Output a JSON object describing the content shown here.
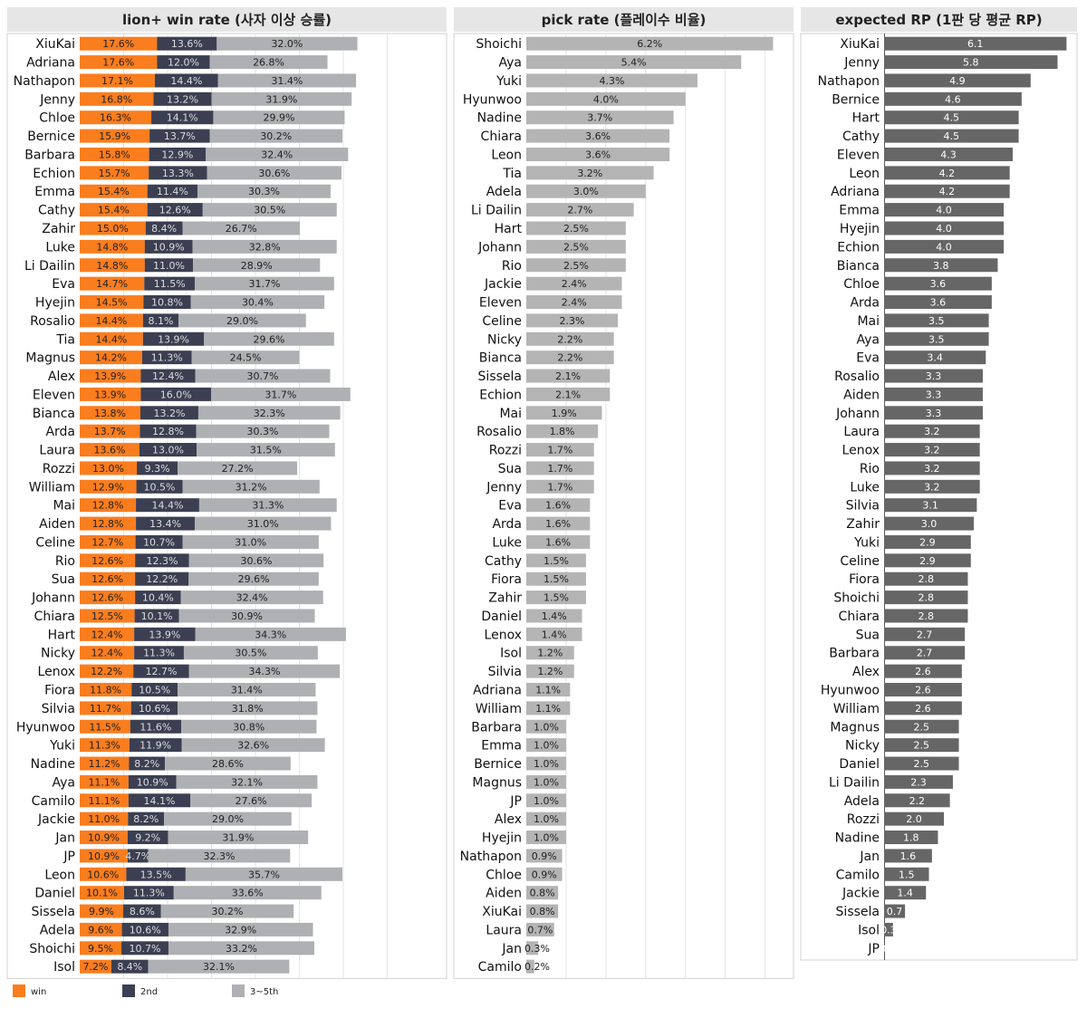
{
  "colors": {
    "win": "#fa7d1e",
    "second": "#3b3f51",
    "third_fifth": "#aeb0b3",
    "pick": "#b4b4b4",
    "rp": "#666666",
    "header_bg": "#e6e6e6",
    "row_bg": "#ffffff"
  },
  "legend": [
    {
      "key": "win",
      "label": "win"
    },
    {
      "key": "second",
      "label": "2nd"
    },
    {
      "key": "third_fifth",
      "label": "3~5th"
    }
  ],
  "chart_data": [
    {
      "type": "bar",
      "stacked": true,
      "orientation": "horizontal",
      "title": "lion+ win rate (사자 이상 승률)",
      "unit": "%",
      "xlim": [
        0,
        80
      ],
      "grid": true,
      "categories": [
        "XiuKai",
        "Adriana",
        "Nathapon",
        "Jenny",
        "Chloe",
        "Bernice",
        "Barbara",
        "Echion",
        "Emma",
        "Cathy",
        "Zahir",
        "Luke",
        "Li Dailin",
        "Eva",
        "Hyejin",
        "Rosalio",
        "Tia",
        "Magnus",
        "Alex",
        "Eleven",
        "Bianca",
        "Arda",
        "Laura",
        "Rozzi",
        "William",
        "Mai",
        "Aiden",
        "Celine",
        "Rio",
        "Sua",
        "Johann",
        "Chiara",
        "Hart",
        "Nicky",
        "Lenox",
        "Fiora",
        "Silvia",
        "Hyunwoo",
        "Yuki",
        "Nadine",
        "Aya",
        "Camilo",
        "Jackie",
        "Jan",
        "JP",
        "Leon",
        "Daniel",
        "Sissela",
        "Adela",
        "Shoichi",
        "Isol"
      ],
      "series": [
        {
          "name": "win",
          "color_key": "win",
          "label_color": "#222222",
          "values": [
            17.6,
            17.6,
            17.1,
            16.8,
            16.3,
            15.9,
            15.8,
            15.7,
            15.4,
            15.4,
            15.0,
            14.8,
            14.8,
            14.7,
            14.5,
            14.4,
            14.4,
            14.2,
            13.9,
            13.9,
            13.8,
            13.7,
            13.6,
            13.0,
            12.9,
            12.8,
            12.8,
            12.7,
            12.6,
            12.6,
            12.6,
            12.5,
            12.4,
            12.4,
            12.2,
            11.8,
            11.7,
            11.5,
            11.3,
            11.2,
            11.1,
            11.1,
            11.0,
            10.9,
            10.9,
            10.6,
            10.1,
            9.9,
            9.6,
            9.5,
            7.2
          ]
        },
        {
          "name": "2nd",
          "color_key": "second",
          "label_color": "#dddddd",
          "values": [
            13.6,
            12.0,
            14.4,
            13.2,
            14.1,
            13.7,
            12.9,
            13.3,
            11.4,
            12.6,
            8.4,
            10.9,
            11.0,
            11.5,
            10.8,
            8.1,
            13.9,
            11.3,
            12.4,
            16.0,
            13.2,
            12.8,
            13.0,
            9.3,
            10.5,
            14.4,
            13.4,
            10.7,
            12.3,
            12.2,
            10.4,
            10.1,
            13.9,
            11.3,
            12.7,
            10.5,
            10.6,
            11.6,
            11.9,
            8.2,
            10.9,
            14.1,
            8.2,
            9.2,
            4.7,
            13.5,
            11.3,
            8.6,
            10.6,
            10.7,
            8.4
          ]
        },
        {
          "name": "3~5th",
          "color_key": "third_fifth",
          "label_color": "#222222",
          "values": [
            32.0,
            26.8,
            31.4,
            31.9,
            29.9,
            30.2,
            32.4,
            30.6,
            30.3,
            30.5,
            26.7,
            32.8,
            28.9,
            31.7,
            30.4,
            29.0,
            29.6,
            24.5,
            30.7,
            31.7,
            32.3,
            30.3,
            31.5,
            27.2,
            31.2,
            31.3,
            31.0,
            31.0,
            30.6,
            29.6,
            32.4,
            30.9,
            34.3,
            30.5,
            34.3,
            31.4,
            31.8,
            30.8,
            32.6,
            28.6,
            32.1,
            27.6,
            29.0,
            31.9,
            32.3,
            35.7,
            33.6,
            30.2,
            32.9,
            33.2,
            32.1
          ]
        }
      ]
    },
    {
      "type": "bar",
      "orientation": "horizontal",
      "title": "pick rate (플레이수 비율)",
      "unit": "%",
      "xlim": [
        0,
        6.6
      ],
      "grid": true,
      "categories": [
        "Shoichi",
        "Aya",
        "Yuki",
        "Hyunwoo",
        "Nadine",
        "Chiara",
        "Leon",
        "Tia",
        "Adela",
        "Li Dailin",
        "Hart",
        "Johann",
        "Rio",
        "Jackie",
        "Eleven",
        "Celine",
        "Nicky",
        "Bianca",
        "Sissela",
        "Echion",
        "Mai",
        "Rosalio",
        "Rozzi",
        "Sua",
        "Jenny",
        "Eva",
        "Arda",
        "Luke",
        "Cathy",
        "Fiora",
        "Zahir",
        "Daniel",
        "Lenox",
        "Isol",
        "Silvia",
        "Adriana",
        "William",
        "Barbara",
        "Emma",
        "Bernice",
        "Magnus",
        "JP",
        "Alex",
        "Hyejin",
        "Nathapon",
        "Chloe",
        "Aiden",
        "XiuKai",
        "Laura",
        "Jan",
        "Camilo"
      ],
      "values": [
        6.2,
        5.4,
        4.3,
        4.0,
        3.7,
        3.6,
        3.6,
        3.2,
        3.0,
        2.7,
        2.5,
        2.5,
        2.5,
        2.4,
        2.4,
        2.3,
        2.2,
        2.2,
        2.1,
        2.1,
        1.9,
        1.8,
        1.7,
        1.7,
        1.7,
        1.6,
        1.6,
        1.6,
        1.5,
        1.5,
        1.5,
        1.4,
        1.4,
        1.2,
        1.2,
        1.1,
        1.1,
        1.0,
        1.0,
        1.0,
        1.0,
        1.0,
        1.0,
        1.0,
        0.9,
        0.9,
        0.8,
        0.8,
        0.7,
        0.3,
        0.2
      ]
    },
    {
      "type": "bar",
      "orientation": "horizontal",
      "title": "expected RP (1판 당 평균 RP)",
      "unit": "",
      "xlim": [
        0,
        6.3
      ],
      "grid": false,
      "categories": [
        "XiuKai",
        "Jenny",
        "Nathapon",
        "Bernice",
        "Hart",
        "Cathy",
        "Eleven",
        "Leon",
        "Adriana",
        "Emma",
        "Hyejin",
        "Echion",
        "Bianca",
        "Chloe",
        "Arda",
        "Mai",
        "Aya",
        "Eva",
        "Rosalio",
        "Aiden",
        "Johann",
        "Laura",
        "Lenox",
        "Rio",
        "Luke",
        "Silvia",
        "Zahir",
        "Yuki",
        "Celine",
        "Fiora",
        "Shoichi",
        "Chiara",
        "Sua",
        "Barbara",
        "Alex",
        "Hyunwoo",
        "William",
        "Magnus",
        "Nicky",
        "Daniel",
        "Li Dailin",
        "Adela",
        "Rozzi",
        "Nadine",
        "Jan",
        "Camilo",
        "Jackie",
        "Sissela",
        "Isol",
        "JP"
      ],
      "values": [
        6.1,
        5.8,
        4.9,
        4.6,
        4.5,
        4.5,
        4.3,
        4.2,
        4.2,
        4.0,
        4.0,
        4.0,
        3.8,
        3.6,
        3.6,
        3.5,
        3.5,
        3.4,
        3.3,
        3.3,
        3.3,
        3.2,
        3.2,
        3.2,
        3.2,
        3.1,
        3.0,
        2.9,
        2.9,
        2.8,
        2.8,
        2.8,
        2.7,
        2.7,
        2.6,
        2.6,
        2.6,
        2.5,
        2.5,
        2.5,
        2.3,
        2.2,
        2.0,
        1.8,
        1.6,
        1.5,
        1.4,
        0.7,
        0.3,
        0.0
      ]
    }
  ]
}
